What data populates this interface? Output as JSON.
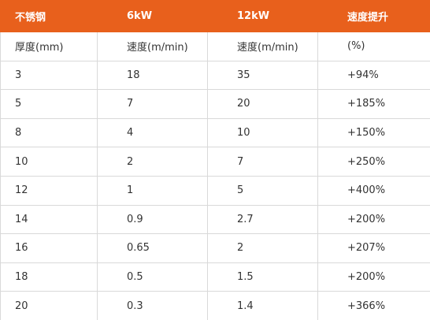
{
  "table": {
    "header": [
      "不锈钢",
      "6kW",
      "12kW",
      "速度提升"
    ],
    "rows": [
      [
        "厚度(mm)",
        "速度(m/min)",
        "速度(m/min)",
        "(%)"
      ],
      [
        "3",
        "18",
        "35",
        "+94%"
      ],
      [
        "5",
        "7",
        "20",
        "+185%"
      ],
      [
        "8",
        "4",
        "10",
        "+150%"
      ],
      [
        "10",
        "2",
        "7",
        "+250%"
      ],
      [
        "12",
        "1",
        "5",
        "+400%"
      ],
      [
        "14",
        "0.9",
        "2.7",
        "+200%"
      ],
      [
        "16",
        "0.65",
        "2",
        "+207%"
      ],
      [
        "18",
        "0.5",
        "1.5",
        "+200%"
      ],
      [
        "20",
        "0.3",
        "1.4",
        "+366%"
      ]
    ]
  }
}
